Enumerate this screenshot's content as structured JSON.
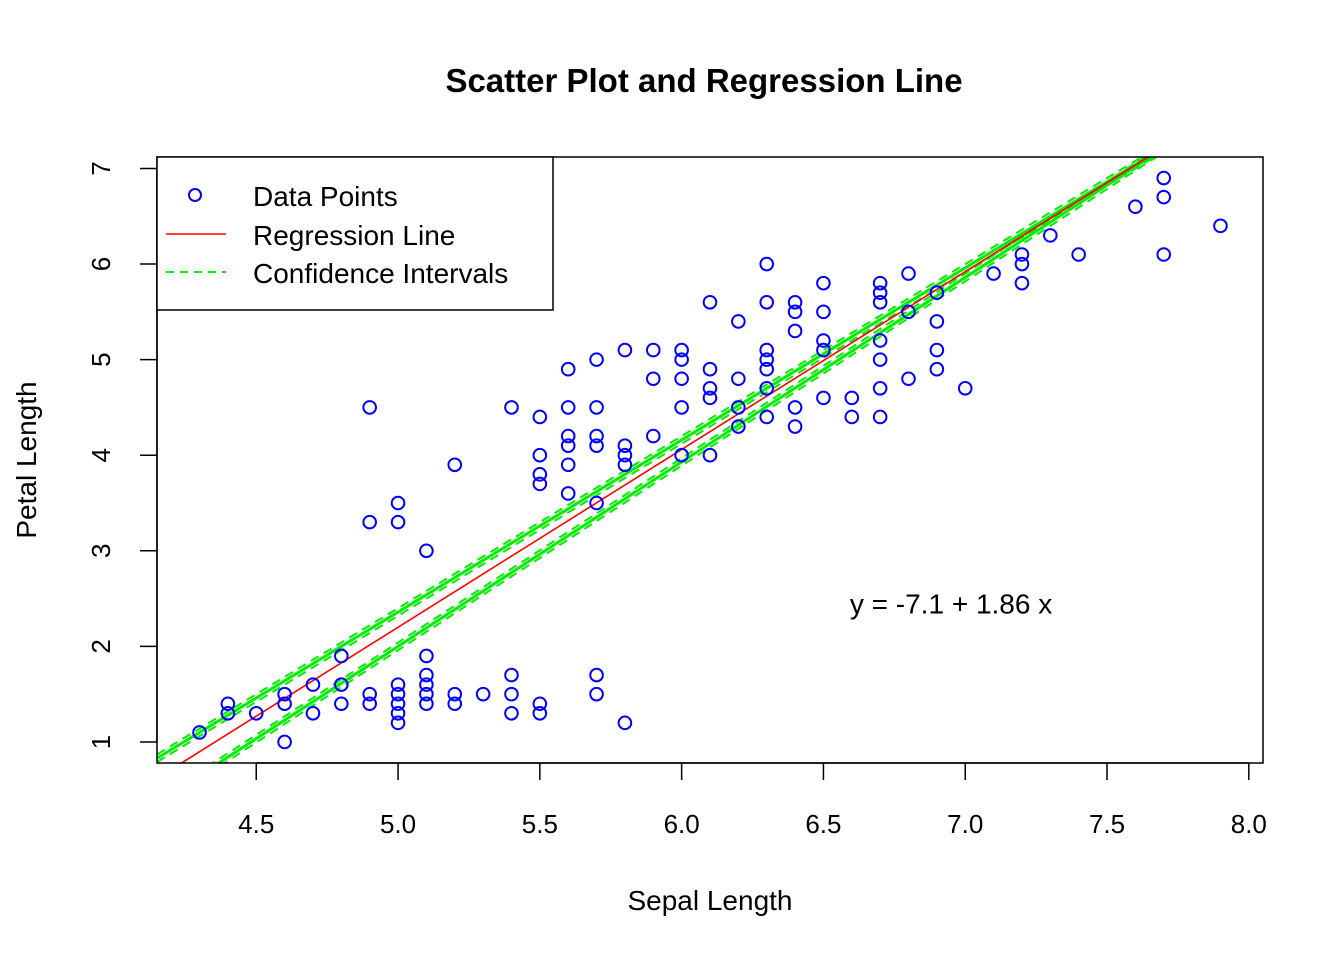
{
  "chart_data": {
    "type": "scatter",
    "title": "Scatter Plot and Regression Line",
    "xlabel": "Sepal Length",
    "ylabel": "Petal Length",
    "xlim": [
      4.15,
      8.05
    ],
    "ylim": [
      0.78,
      7.12
    ],
    "x_ticks": [
      4.5,
      5.0,
      5.5,
      6.0,
      6.5,
      7.0,
      7.5,
      8.0
    ],
    "x_tick_labels": [
      "4.5",
      "5.0",
      "5.5",
      "6.0",
      "6.5",
      "7.0",
      "7.5",
      "8.0"
    ],
    "y_ticks": [
      1,
      2,
      3,
      4,
      5,
      6,
      7
    ],
    "y_tick_labels": [
      "1",
      "2",
      "3",
      "4",
      "5",
      "6",
      "7"
    ],
    "legend": {
      "placement": "top-left",
      "items": [
        {
          "label": "Data Points",
          "kind": "point",
          "color": "#0000ff"
        },
        {
          "label": "Regression Line",
          "kind": "line",
          "color": "#ff0000"
        },
        {
          "label": "Confidence Intervals",
          "kind": "dashed",
          "color": "#00ee00"
        }
      ]
    },
    "annotation": {
      "text": "y = -7.1 + 1.86 x",
      "x": 6.95,
      "y": 2.45
    },
    "colors": {
      "points": "#0000ff",
      "regression": "#ff0000",
      "confidence": "#00ee00"
    },
    "regression": {
      "intercept": -7.1,
      "slope": 1.86
    },
    "confidence_bands": [
      {
        "name": "upper",
        "intercept": -6.64,
        "slope": 1.8
      },
      {
        "name": "lower",
        "intercept": -7.65,
        "slope": 1.93
      }
    ],
    "points": [
      [
        4.3,
        1.1
      ],
      [
        4.4,
        1.4
      ],
      [
        4.4,
        1.3
      ],
      [
        4.5,
        1.3
      ],
      [
        4.6,
        1.5
      ],
      [
        4.6,
        1.4
      ],
      [
        4.6,
        1.0
      ],
      [
        4.7,
        1.6
      ],
      [
        4.7,
        1.3
      ],
      [
        4.8,
        1.9
      ],
      [
        4.8,
        1.6
      ],
      [
        4.8,
        1.4
      ],
      [
        4.9,
        1.5
      ],
      [
        4.9,
        1.4
      ],
      [
        4.9,
        4.5
      ],
      [
        4.9,
        3.3
      ],
      [
        5.0,
        1.6
      ],
      [
        5.0,
        1.5
      ],
      [
        5.0,
        1.4
      ],
      [
        5.0,
        1.3
      ],
      [
        5.0,
        1.2
      ],
      [
        5.0,
        3.5
      ],
      [
        5.0,
        3.3
      ],
      [
        5.1,
        1.9
      ],
      [
        5.1,
        1.7
      ],
      [
        5.1,
        1.6
      ],
      [
        5.1,
        1.5
      ],
      [
        5.1,
        1.4
      ],
      [
        5.1,
        3.0
      ],
      [
        5.2,
        1.5
      ],
      [
        5.2,
        1.4
      ],
      [
        5.2,
        3.9
      ],
      [
        5.3,
        1.5
      ],
      [
        5.4,
        1.7
      ],
      [
        5.4,
        1.5
      ],
      [
        5.4,
        1.3
      ],
      [
        5.4,
        4.5
      ],
      [
        5.5,
        1.4
      ],
      [
        5.5,
        1.3
      ],
      [
        5.5,
        4.4
      ],
      [
        5.5,
        4.0
      ],
      [
        5.5,
        3.8
      ],
      [
        5.5,
        3.7
      ],
      [
        5.6,
        4.9
      ],
      [
        5.6,
        4.5
      ],
      [
        5.6,
        4.2
      ],
      [
        5.6,
        4.1
      ],
      [
        5.6,
        3.9
      ],
      [
        5.6,
        3.6
      ],
      [
        5.7,
        1.7
      ],
      [
        5.7,
        1.5
      ],
      [
        5.7,
        5.0
      ],
      [
        5.7,
        4.5
      ],
      [
        5.7,
        4.2
      ],
      [
        5.7,
        4.1
      ],
      [
        5.7,
        3.5
      ],
      [
        5.8,
        1.2
      ],
      [
        5.8,
        5.1
      ],
      [
        5.8,
        4.1
      ],
      [
        5.8,
        4.0
      ],
      [
        5.8,
        3.9
      ],
      [
        5.9,
        5.1
      ],
      [
        5.9,
        4.8
      ],
      [
        5.9,
        4.2
      ],
      [
        6.0,
        5.1
      ],
      [
        6.0,
        5.0
      ],
      [
        6.0,
        4.8
      ],
      [
        6.0,
        4.5
      ],
      [
        6.0,
        4.0
      ],
      [
        6.1,
        5.6
      ],
      [
        6.1,
        4.9
      ],
      [
        6.1,
        4.7
      ],
      [
        6.1,
        4.6
      ],
      [
        6.1,
        4.0
      ],
      [
        6.2,
        5.4
      ],
      [
        6.2,
        4.8
      ],
      [
        6.2,
        4.5
      ],
      [
        6.2,
        4.3
      ],
      [
        6.3,
        6.0
      ],
      [
        6.3,
        5.6
      ],
      [
        6.3,
        5.1
      ],
      [
        6.3,
        5.0
      ],
      [
        6.3,
        4.9
      ],
      [
        6.3,
        4.7
      ],
      [
        6.3,
        4.4
      ],
      [
        6.4,
        5.6
      ],
      [
        6.4,
        5.5
      ],
      [
        6.4,
        5.3
      ],
      [
        6.4,
        4.5
      ],
      [
        6.4,
        4.3
      ],
      [
        6.5,
        5.8
      ],
      [
        6.5,
        5.5
      ],
      [
        6.5,
        5.2
      ],
      [
        6.5,
        5.1
      ],
      [
        6.5,
        4.6
      ],
      [
        6.6,
        4.6
      ],
      [
        6.6,
        4.4
      ],
      [
        6.7,
        5.8
      ],
      [
        6.7,
        5.7
      ],
      [
        6.7,
        5.6
      ],
      [
        6.7,
        5.2
      ],
      [
        6.7,
        5.0
      ],
      [
        6.7,
        4.7
      ],
      [
        6.7,
        4.4
      ],
      [
        6.8,
        5.9
      ],
      [
        6.8,
        5.5
      ],
      [
        6.8,
        4.8
      ],
      [
        6.9,
        5.7
      ],
      [
        6.9,
        5.4
      ],
      [
        6.9,
        5.1
      ],
      [
        6.9,
        4.9
      ],
      [
        7.0,
        4.7
      ],
      [
        7.1,
        5.9
      ],
      [
        7.2,
        6.1
      ],
      [
        7.2,
        6.0
      ],
      [
        7.2,
        5.8
      ],
      [
        7.3,
        6.3
      ],
      [
        7.4,
        6.1
      ],
      [
        7.6,
        6.6
      ],
      [
        7.7,
        6.9
      ],
      [
        7.7,
        6.7
      ],
      [
        7.7,
        6.1
      ],
      [
        7.9,
        6.4
      ]
    ]
  }
}
